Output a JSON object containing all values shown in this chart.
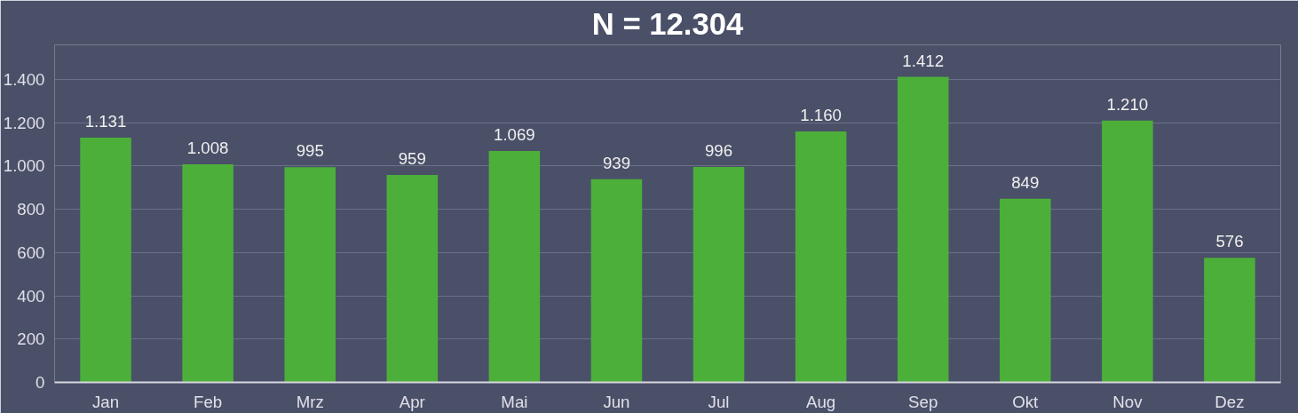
{
  "chart_data": {
    "type": "bar",
    "title": "N = 12.304",
    "categories": [
      "Jan",
      "Feb",
      "Mrz",
      "Apr",
      "Mai",
      "Jun",
      "Jul",
      "Aug",
      "Sep",
      "Okt",
      "Nov",
      "Dez"
    ],
    "values": [
      1131,
      1008,
      995,
      959,
      1069,
      939,
      996,
      1160,
      1412,
      849,
      1210,
      576
    ],
    "value_labels": [
      "1.131",
      "1.008",
      "995",
      "959",
      "1.069",
      "939",
      "996",
      "1.160",
      "1.412",
      "849",
      "1.210",
      "576"
    ],
    "color": "#4caf3a",
    "ylim": [
      0,
      1560
    ],
    "yticks": [
      0,
      200,
      400,
      600,
      800,
      {
        "value": 1000,
        "label": "1.000"
      },
      {
        "value": 1200,
        "label": "1.200"
      },
      {
        "value": 1400,
        "label": "1.400"
      }
    ],
    "grid": "y"
  }
}
